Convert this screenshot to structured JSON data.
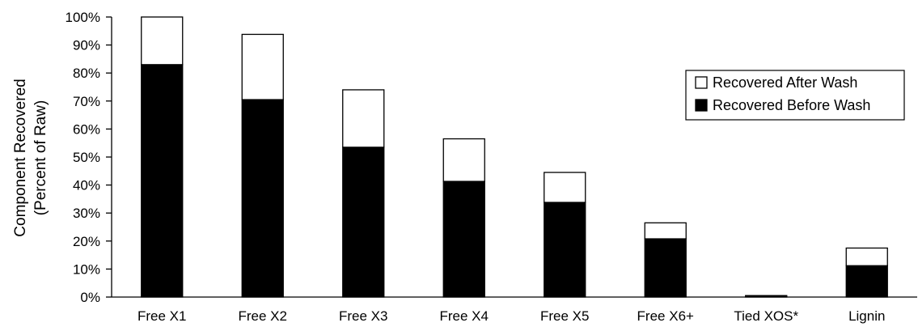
{
  "chart_data": {
    "type": "bar",
    "stacked": true,
    "title": "",
    "xlabel": "",
    "ylabel_line1": "Component Recovered",
    "ylabel_line2": "(Percent of Raw)",
    "ylim": [
      0,
      100
    ],
    "yticks": [
      "0%",
      "10%",
      "20%",
      "30%",
      "40%",
      "50%",
      "60%",
      "70%",
      "80%",
      "90%",
      "100%"
    ],
    "categories": [
      "Free X1",
      "Free X2",
      "Free X3",
      "Free X4",
      "Free X5",
      "Free X6+",
      "Tied XOS*",
      "Lignin"
    ],
    "series": [
      {
        "name": "Recovered Before Wash",
        "color": "#000000",
        "values": [
          83,
          70.5,
          53.5,
          41.3,
          33.8,
          20.8,
          0.3,
          11.2
        ]
      },
      {
        "name": "Recovered After Wash",
        "color": "#ffffff",
        "values": [
          17,
          23.3,
          20.5,
          15.2,
          10.7,
          5.7,
          0.1,
          6.3
        ]
      }
    ],
    "legend": {
      "position": "top-right",
      "entries": [
        "Recovered After Wash",
        "Recovered Before Wash"
      ]
    },
    "grid": false
  }
}
